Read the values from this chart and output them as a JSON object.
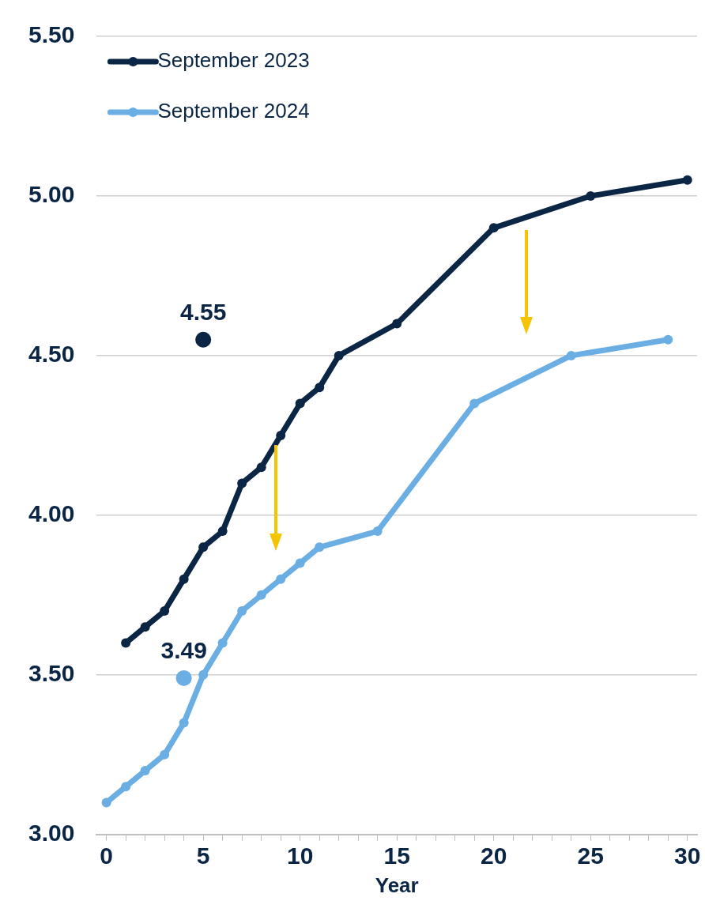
{
  "chart_data": {
    "type": "line",
    "xlabel": "Year",
    "xlim": [
      -0.5,
      30.5
    ],
    "xticks": [
      {
        "value": 0,
        "label": "0"
      },
      {
        "value": 1,
        "label": null
      },
      {
        "value": 2,
        "label": null
      },
      {
        "value": 3,
        "label": null
      },
      {
        "value": 4,
        "label": null
      },
      {
        "value": 5,
        "label": "5"
      },
      {
        "value": 6,
        "label": null
      },
      {
        "value": 7,
        "label": null
      },
      {
        "value": 8,
        "label": null
      },
      {
        "value": 9,
        "label": null
      },
      {
        "value": 10,
        "label": "10"
      },
      {
        "value": 11,
        "label": null
      },
      {
        "value": 12,
        "label": null
      },
      {
        "value": 13,
        "label": null
      },
      {
        "value": 14,
        "label": null
      },
      {
        "value": 15,
        "label": "15"
      },
      {
        "value": 16,
        "label": null
      },
      {
        "value": 17,
        "label": null
      },
      {
        "value": 18,
        "label": null
      },
      {
        "value": 19,
        "label": null
      },
      {
        "value": 20,
        "label": "20"
      },
      {
        "value": 21,
        "label": null
      },
      {
        "value": 22,
        "label": null
      },
      {
        "value": 23,
        "label": null
      },
      {
        "value": 24,
        "label": null
      },
      {
        "value": 25,
        "label": "25"
      },
      {
        "value": 26,
        "label": null
      },
      {
        "value": 27,
        "label": null
      },
      {
        "value": 28,
        "label": null
      },
      {
        "value": 29,
        "label": null
      },
      {
        "value": 30,
        "label": "30"
      }
    ],
    "ylim": [
      3.0,
      5.5
    ],
    "yticks": [
      {
        "value": 3.0,
        "label": "3.00"
      },
      {
        "value": 3.5,
        "label": "3.50"
      },
      {
        "value": 4.0,
        "label": "4.00"
      },
      {
        "value": 4.5,
        "label": "4.50"
      },
      {
        "value": 5.0,
        "label": "5.00"
      },
      {
        "value": 5.5,
        "label": "5.50"
      }
    ],
    "grid": "y",
    "legend": "top left",
    "marker": "circle",
    "line_style": "solid",
    "series": [
      {
        "name": "September 2023",
        "color": "#0b2545",
        "x": [
          1,
          2,
          3,
          4,
          5,
          6,
          7,
          8,
          9,
          10,
          11,
          12,
          15,
          20,
          25,
          30
        ],
        "values": [
          3.6,
          3.65,
          3.7,
          3.8,
          3.9,
          3.95,
          4.1,
          4.15,
          4.25,
          4.35,
          4.4,
          4.5,
          4.6,
          4.9,
          5.0,
          5.05
        ]
      },
      {
        "name": "September 2024",
        "color": "#6aaee3",
        "x": [
          0,
          1,
          2,
          3,
          4,
          5,
          6,
          7,
          8,
          9,
          10,
          11,
          14,
          19,
          24,
          29
        ],
        "values": [
          3.1,
          3.15,
          3.2,
          3.25,
          3.35,
          3.5,
          3.6,
          3.7,
          3.75,
          3.8,
          3.85,
          3.9,
          3.95,
          4.35,
          4.5,
          4.55
        ]
      },
      {
        "type": "scatter",
        "color": "#0b2545",
        "x": [
          5
        ],
        "values": [
          4.55
        ],
        "value_labels": [
          "4.55"
        ]
      },
      {
        "type": "scatter",
        "color": "#6aaee3",
        "x": [
          4
        ],
        "values": [
          3.49
        ],
        "value_labels": [
          "3.49"
        ]
      }
    ]
  }
}
